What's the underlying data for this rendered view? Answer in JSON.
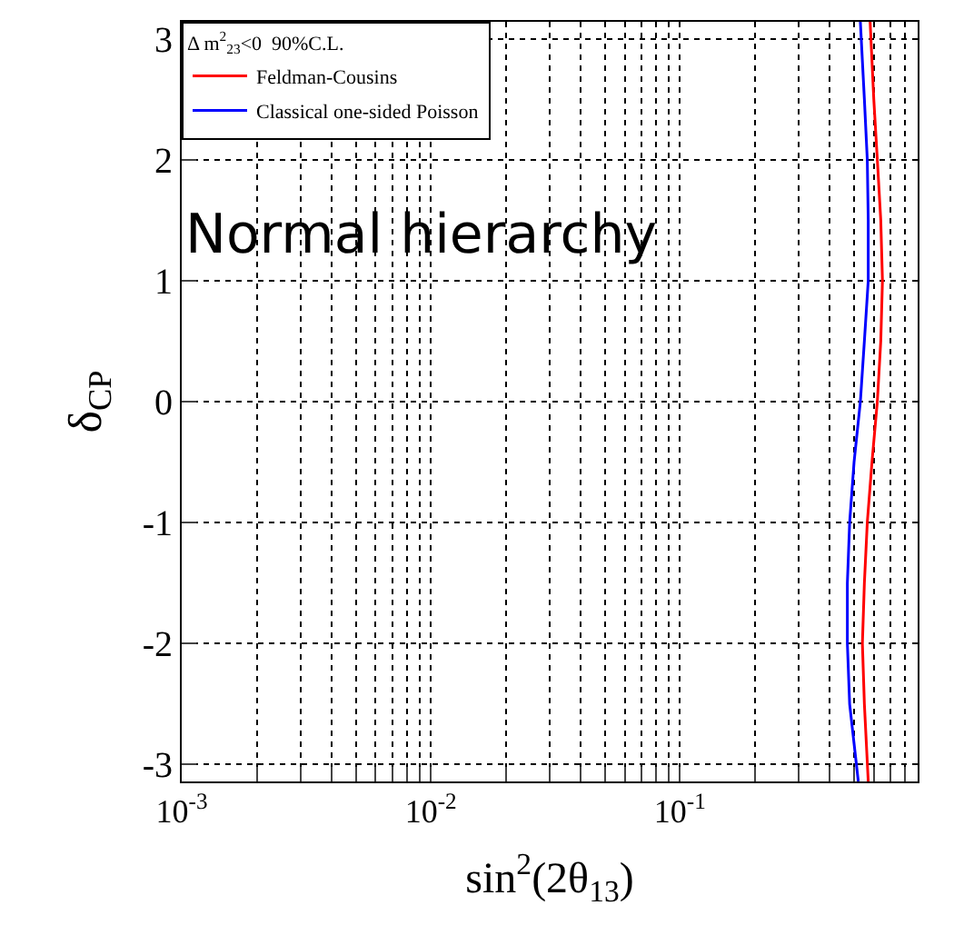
{
  "chart_data": {
    "type": "line",
    "xlabel": "sin$^{2}$(2θ$_{13}$)",
    "ylabel": "δ$_{CP}$",
    "legend_title": "Δ m$^{2}$$_{23}$<0  90%C.L.",
    "annotations": [
      "Normal hierarchy"
    ],
    "log": "x",
    "xlim": [
      0.001,
      0.9
    ],
    "ylim": [
      -3.14,
      3.14
    ],
    "xticks": [
      {
        "value": 0.001,
        "label": "10$^{-3}$"
      },
      {
        "value": 0.002,
        "label": null
      },
      {
        "value": 0.003,
        "label": null
      },
      {
        "value": 0.004,
        "label": null
      },
      {
        "value": 0.005,
        "label": null
      },
      {
        "value": 0.006,
        "label": null
      },
      {
        "value": 0.007,
        "label": null
      },
      {
        "value": 0.008,
        "label": null
      },
      {
        "value": 0.009,
        "label": null
      },
      {
        "value": 0.01,
        "label": "10$^{-2}$"
      },
      {
        "value": 0.02,
        "label": null
      },
      {
        "value": 0.03,
        "label": null
      },
      {
        "value": 0.04,
        "label": null
      },
      {
        "value": 0.05,
        "label": null
      },
      {
        "value": 0.06,
        "label": null
      },
      {
        "value": 0.07,
        "label": null
      },
      {
        "value": 0.08,
        "label": null
      },
      {
        "value": 0.09,
        "label": null
      },
      {
        "value": 0.1,
        "label": "10$^{-1}$"
      },
      {
        "value": 0.2,
        "label": null
      },
      {
        "value": 0.3,
        "label": null
      },
      {
        "value": 0.4,
        "label": null
      },
      {
        "value": 0.5,
        "label": null
      },
      {
        "value": 0.6,
        "label": null
      },
      {
        "value": 0.7,
        "label": null
      },
      {
        "value": 0.8,
        "label": null
      }
    ],
    "yticks": [
      -3,
      -2,
      -1,
      0,
      1,
      2,
      3
    ],
    "grid": true,
    "legend": "top left",
    "marker": "none",
    "line_style": "solid",
    "series": [
      {
        "name": "Feldman-Cousins",
        "color": "#ff0000",
        "x": [
          0.58,
          0.6,
          0.62,
          0.64,
          0.65,
          0.64,
          0.62,
          0.59,
          0.565,
          0.55,
          0.54,
          0.55,
          0.57
        ],
        "values": [
          3.14,
          2.5,
          2,
          1.5,
          1,
          0.5,
          0,
          -0.5,
          -1,
          -1.5,
          -2,
          -2.5,
          -3.14
        ]
      },
      {
        "name": "Classical one-sided Poisson",
        "color": "#0000ff",
        "x": [
          0.53,
          0.55,
          0.565,
          0.57,
          0.57,
          0.55,
          0.53,
          0.5,
          0.48,
          0.47,
          0.47,
          0.48,
          0.52
        ],
        "values": [
          3.14,
          2.5,
          2,
          1.5,
          1,
          0.5,
          0,
          -0.5,
          -1,
          -1.5,
          -2,
          -2.5,
          -3.14
        ]
      }
    ]
  }
}
